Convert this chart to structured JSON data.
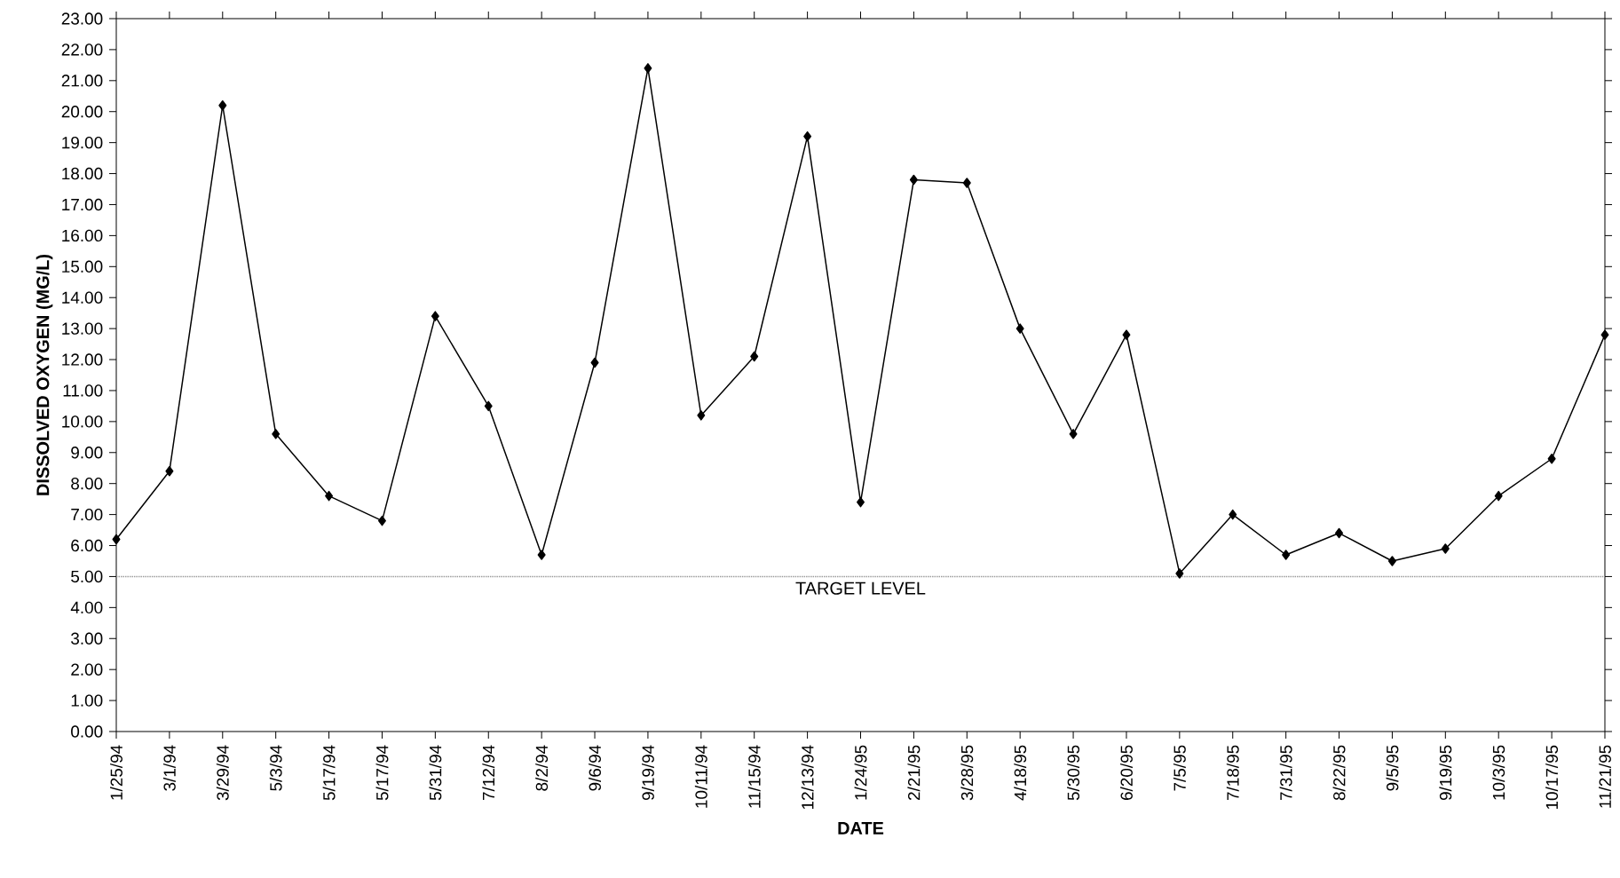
{
  "chart_data": {
    "type": "line",
    "xlabel": "DATE",
    "ylabel": "DISSOLVED OXYGEN (MG/L)",
    "categories": [
      "1/25/94",
      "3/1/94",
      "3/29/94",
      "5/3/94",
      "5/17/94",
      "5/17/94",
      "5/31/94",
      "7/12/94",
      "8/2/94",
      "9/6/94",
      "9/19/94",
      "10/11/94",
      "11/15/94",
      "12/13/94",
      "1/24/95",
      "2/21/95",
      "3/28/95",
      "4/18/95",
      "5/30/95",
      "6/20/95",
      "7/5/95",
      "7/18/95",
      "7/31/95",
      "8/22/95",
      "9/5/95",
      "9/19/95",
      "10/3/95",
      "10/17/95",
      "11/21/95"
    ],
    "values": [
      6.2,
      8.4,
      20.2,
      9.6,
      7.6,
      6.8,
      13.4,
      10.5,
      5.7,
      11.9,
      21.4,
      10.2,
      12.1,
      19.2,
      7.4,
      17.8,
      17.7,
      13.0,
      9.6,
      12.8,
      5.1,
      7.0,
      5.7,
      6.4,
      5.5,
      5.9,
      7.6,
      8.8,
      12.8
    ],
    "color": "#000000",
    "marker": "diamond",
    "line_style": "solid",
    "ylim": [
      0,
      23
    ],
    "yticks": [
      {
        "value": 0,
        "label": "0.00"
      },
      {
        "value": 1,
        "label": "1.00"
      },
      {
        "value": 2,
        "label": "2.00"
      },
      {
        "value": 3,
        "label": "3.00"
      },
      {
        "value": 4,
        "label": "4.00"
      },
      {
        "value": 5,
        "label": "5.00"
      },
      {
        "value": 6,
        "label": "6.00"
      },
      {
        "value": 7,
        "label": "7.00"
      },
      {
        "value": 8,
        "label": "8.00"
      },
      {
        "value": 9,
        "label": "9.00"
      },
      {
        "value": 10,
        "label": "10.00"
      },
      {
        "value": 11,
        "label": "11.00"
      },
      {
        "value": 12,
        "label": "12.00"
      },
      {
        "value": 13,
        "label": "13.00"
      },
      {
        "value": 14,
        "label": "14.00"
      },
      {
        "value": 15,
        "label": "15.00"
      },
      {
        "value": 16,
        "label": "16.00"
      },
      {
        "value": 17,
        "label": "17.00"
      },
      {
        "value": 18,
        "label": "18.00"
      },
      {
        "value": 19,
        "label": "19.00"
      },
      {
        "value": 20,
        "label": "20.00"
      },
      {
        "value": 21,
        "label": "21.00"
      },
      {
        "value": 22,
        "label": "22.00"
      },
      {
        "value": 23,
        "label": "23.00"
      }
    ],
    "ref_lines": [
      {
        "axis": "y",
        "value": 5,
        "label": "TARGET LEVEL",
        "color": "#9a9a9a",
        "line_style": "dotted"
      }
    ]
  }
}
